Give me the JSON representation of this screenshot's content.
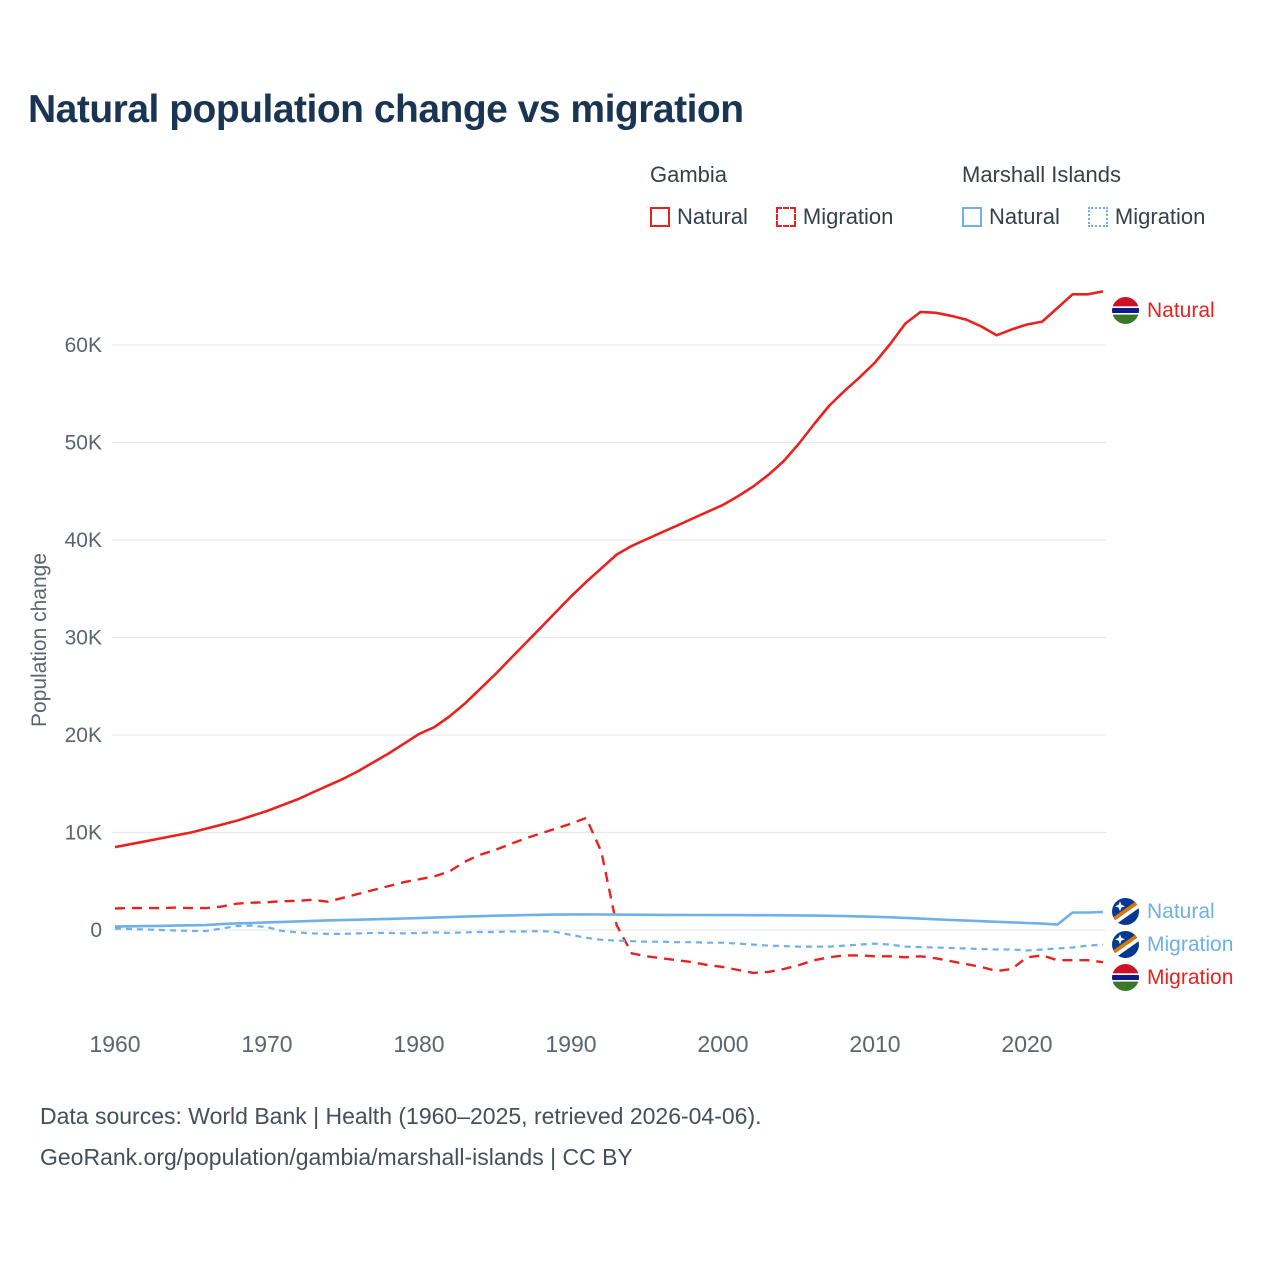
{
  "title": "Natural population change vs migration",
  "colors": {
    "gambia_red": "#e8231f",
    "marshall_blue": "#6fb0e8",
    "title": "#1a3553",
    "axis_text": "#5b6470",
    "grid": "#e9e9e9",
    "footer_text": "#454f5b"
  },
  "legend": {
    "groups": [
      {
        "label": "Gambia",
        "items": [
          {
            "label": "Natural",
            "line": "solid",
            "color": "#e8231f"
          },
          {
            "label": "Migration",
            "line": "dashed",
            "color": "#e8231f"
          }
        ]
      },
      {
        "label": "Marshall Islands",
        "items": [
          {
            "label": "Natural",
            "line": "solid",
            "color": "#6fb0e8"
          },
          {
            "label": "Migration",
            "line": "dotted",
            "color": "#6fb0e8"
          }
        ]
      }
    ]
  },
  "end_labels": [
    {
      "label": "Natural",
      "country": "Gambia",
      "color": "#e8231f"
    },
    {
      "label": "Natural",
      "country": "Marshall Islands",
      "color": "#6fb0e8"
    },
    {
      "label": "Migration",
      "country": "Marshall Islands",
      "color": "#6fb0e8"
    },
    {
      "label": "Migration",
      "country": "Gambia",
      "color": "#e8231f"
    }
  ],
  "footer": {
    "line1": "Data sources: World Bank | Health (1960–2025, retrieved 2026-04-06).",
    "line2": "GeoRank.org/population/gambia/marshall-islands | CC BY"
  },
  "chart_data": {
    "type": "line",
    "title": "Natural population change vs migration",
    "ylabel": "Population change",
    "xlabel": "",
    "grid": true,
    "legend_position": "top-right",
    "ylim": [
      -7000,
      67000
    ],
    "xlim": [
      1960,
      2025
    ],
    "yticks": [
      0,
      10000,
      20000,
      30000,
      40000,
      50000,
      60000
    ],
    "ytick_labels": [
      "0",
      "10K",
      "20K",
      "30K",
      "40K",
      "50K",
      "60K"
    ],
    "xticks": [
      1960,
      1970,
      1980,
      1990,
      2000,
      2010,
      2020
    ],
    "xtick_labels": [
      "1960",
      "1970",
      "1980",
      "1990",
      "2000",
      "2010",
      "2020"
    ],
    "x": [
      1960,
      1961,
      1962,
      1963,
      1964,
      1965,
      1966,
      1967,
      1968,
      1969,
      1970,
      1971,
      1972,
      1973,
      1974,
      1975,
      1976,
      1977,
      1978,
      1979,
      1980,
      1981,
      1982,
      1983,
      1984,
      1985,
      1986,
      1987,
      1988,
      1989,
      1990,
      1991,
      1992,
      1993,
      1994,
      1995,
      1996,
      1997,
      1998,
      1999,
      2000,
      2001,
      2002,
      2003,
      2004,
      2005,
      2006,
      2007,
      2008,
      2009,
      2010,
      2011,
      2012,
      2013,
      2014,
      2015,
      2016,
      2017,
      2018,
      2019,
      2020,
      2021,
      2022,
      2023,
      2024,
      2025
    ],
    "series": [
      {
        "name": "Gambia Natural",
        "color": "#e8231f",
        "dash": null,
        "width": 2.6,
        "values": [
          8500,
          8800,
          9100,
          9400,
          9700,
          10000,
          10400,
          10800,
          11200,
          11700,
          12200,
          12800,
          13400,
          14100,
          14800,
          15500,
          16300,
          17200,
          18100,
          19100,
          20100,
          20800,
          21900,
          23200,
          24700,
          26200,
          27800,
          29400,
          31000,
          32600,
          34200,
          35700,
          37100,
          38500,
          39400,
          40100,
          40800,
          41500,
          42200,
          42900,
          43600,
          44500,
          45500,
          46700,
          48100,
          49900,
          51900,
          53800,
          55300,
          56700,
          58200,
          60100,
          62200,
          63400,
          63300,
          63000,
          62600,
          61900,
          61000,
          61600,
          62100,
          62400,
          63800,
          65200,
          65200,
          65500
        ]
      },
      {
        "name": "Gambia Migration",
        "color": "#e8231f",
        "dash": "10 7",
        "width": 2.4,
        "values": [
          2200,
          2250,
          2250,
          2250,
          2300,
          2250,
          2250,
          2400,
          2700,
          2800,
          2850,
          2950,
          3000,
          3100,
          2900,
          3300,
          3700,
          4100,
          4500,
          4900,
          5200,
          5500,
          6000,
          7000,
          7700,
          8200,
          8800,
          9400,
          9900,
          10400,
          10900,
          11500,
          8000,
          500,
          -2400,
          -2700,
          -2900,
          -3100,
          -3300,
          -3600,
          -3800,
          -4100,
          -4400,
          -4300,
          -4000,
          -3600,
          -3100,
          -2800,
          -2600,
          -2600,
          -2700,
          -2700,
          -2800,
          -2700,
          -2900,
          -3200,
          -3500,
          -3800,
          -4200,
          -4000,
          -2800,
          -2600,
          -3100,
          -3100,
          -3100,
          -3300
        ]
      },
      {
        "name": "Marshall Islands Natural",
        "color": "#6fb0e8",
        "dash": null,
        "width": 2.6,
        "values": [
          350,
          380,
          400,
          420,
          450,
          480,
          500,
          600,
          680,
          720,
          780,
          830,
          880,
          930,
          980,
          1020,
          1060,
          1100,
          1140,
          1180,
          1220,
          1270,
          1320,
          1370,
          1420,
          1470,
          1500,
          1530,
          1560,
          1580,
          1600,
          1600,
          1590,
          1580,
          1570,
          1560,
          1550,
          1550,
          1540,
          1540,
          1530,
          1530,
          1520,
          1520,
          1510,
          1500,
          1480,
          1460,
          1430,
          1390,
          1350,
          1300,
          1240,
          1170,
          1100,
          1030,
          960,
          900,
          840,
          780,
          720,
          660,
          550,
          1800,
          1800,
          1850
        ]
      },
      {
        "name": "Marshall Islands Migration",
        "color": "#6fb0e8",
        "dash": "6 5",
        "width": 2.2,
        "values": [
          150,
          100,
          50,
          0,
          -50,
          -100,
          -100,
          150,
          400,
          450,
          300,
          -100,
          -250,
          -350,
          -400,
          -400,
          -350,
          -300,
          -300,
          -350,
          -300,
          -250,
          -300,
          -250,
          -200,
          -200,
          -150,
          -150,
          -100,
          -200,
          -500,
          -800,
          -1000,
          -1100,
          -1150,
          -1200,
          -1200,
          -1250,
          -1250,
          -1300,
          -1300,
          -1400,
          -1500,
          -1600,
          -1650,
          -1700,
          -1700,
          -1700,
          -1600,
          -1500,
          -1400,
          -1500,
          -1700,
          -1750,
          -1800,
          -1850,
          -1900,
          -1950,
          -2000,
          -2000,
          -2100,
          -2000,
          -1900,
          -1800,
          -1600,
          -1500
        ]
      }
    ]
  }
}
